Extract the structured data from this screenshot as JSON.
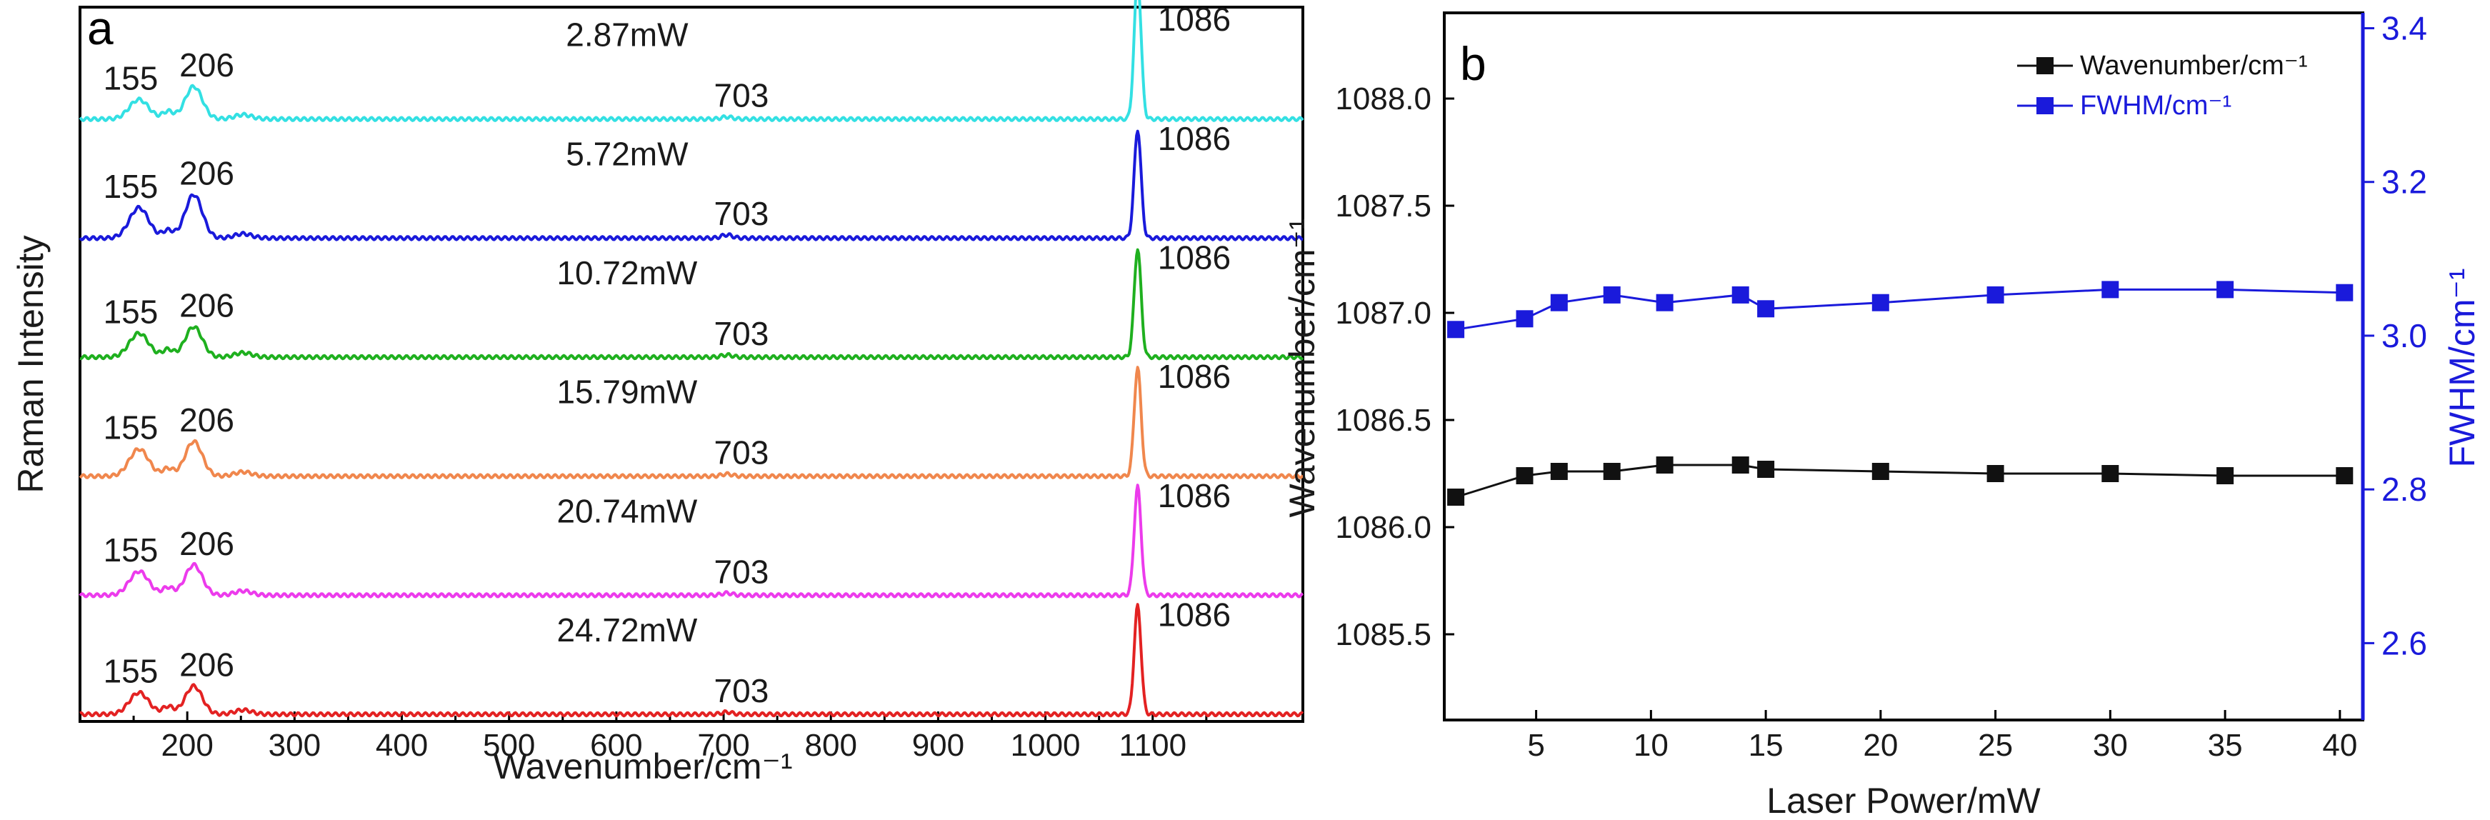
{
  "chart_data": [
    {
      "type": "line",
      "panel_label": "a",
      "title": "",
      "xlabel": "Wavenumber/cm⁻¹",
      "ylabel": "Raman Intensity",
      "xlim": [
        100,
        1240
      ],
      "xticks": [
        200,
        300,
        400,
        500,
        600,
        700,
        800,
        900,
        1000,
        1100
      ],
      "xtick_labels": [
        "200",
        "300",
        "400",
        "500",
        "600",
        "700",
        "800",
        "900",
        "1000",
        "1100"
      ],
      "peaks": [
        {
          "position": 155,
          "label": "155"
        },
        {
          "position": 206,
          "label": "206"
        },
        {
          "position": 703,
          "label": "703"
        },
        {
          "position": 1086,
          "label": "1086"
        }
      ],
      "series": [
        {
          "name": "2.87mW",
          "color": "#33e0e3",
          "rel_peak_heights": [
            0.18,
            0.3,
            0.02,
            1.3
          ]
        },
        {
          "name": "5.72mW",
          "color": "#1a1adb",
          "rel_peak_heights": [
            0.28,
            0.4,
            0.03,
            1.0
          ]
        },
        {
          "name": "10.72mW",
          "color": "#1fb01f",
          "rel_peak_heights": [
            0.22,
            0.28,
            0.02,
            1.0
          ]
        },
        {
          "name": "15.79mW",
          "color": "#f0874d",
          "rel_peak_heights": [
            0.25,
            0.32,
            0.02,
            1.0
          ]
        },
        {
          "name": "20.74mW",
          "color": "#ec3bec",
          "rel_peak_heights": [
            0.22,
            0.28,
            0.02,
            1.0
          ]
        },
        {
          "name": "24.72mW",
          "color": "#e32222",
          "rel_peak_heights": [
            0.2,
            0.26,
            0.02,
            1.0
          ]
        }
      ]
    },
    {
      "type": "line",
      "panel_label": "b",
      "title": "",
      "xlabel": "Laser Power/mW",
      "ylabel": "Wavenumber/cm⁻¹",
      "y2label": "FWHM/cm⁻¹",
      "xlim": [
        1,
        41
      ],
      "xticks": [
        5,
        10,
        15,
        20,
        25,
        30,
        35,
        40
      ],
      "ylim": [
        1085.1,
        1088.4
      ],
      "yticks": [
        1085.5,
        1086.0,
        1086.5,
        1087.0,
        1087.5,
        1088.0
      ],
      "ytick_labels": [
        "1085.5",
        "1086.0",
        "1086.5",
        "1087.0",
        "1087.5",
        "1088.0"
      ],
      "y2lim": [
        2.5,
        3.42
      ],
      "y2ticks": [
        2.6,
        2.8,
        3.0,
        3.2,
        3.4
      ],
      "y2tick_labels": [
        "2.6",
        "2.8",
        "3.0",
        "3.2",
        "3.4"
      ],
      "x": [
        1.5,
        4.5,
        6,
        8.3,
        10.6,
        13.9,
        15,
        20,
        25,
        30,
        35,
        40.2
      ],
      "series": [
        {
          "name": "Wavenumber/cm⁻¹",
          "axis": "left",
          "color": "#111111",
          "values": [
            1086.14,
            1086.24,
            1086.26,
            1086.26,
            1086.29,
            1086.29,
            1086.27,
            1086.26,
            1086.25,
            1086.25,
            1086.24,
            1086.24
          ]
        },
        {
          "name": "FWHM/cm⁻¹",
          "axis": "right",
          "color": "#1a1adb",
          "values": [
            3.008,
            3.022,
            3.043,
            3.053,
            3.043,
            3.053,
            3.035,
            3.043,
            3.053,
            3.06,
            3.06,
            3.056
          ]
        }
      ],
      "legend_position": "top-right"
    }
  ]
}
